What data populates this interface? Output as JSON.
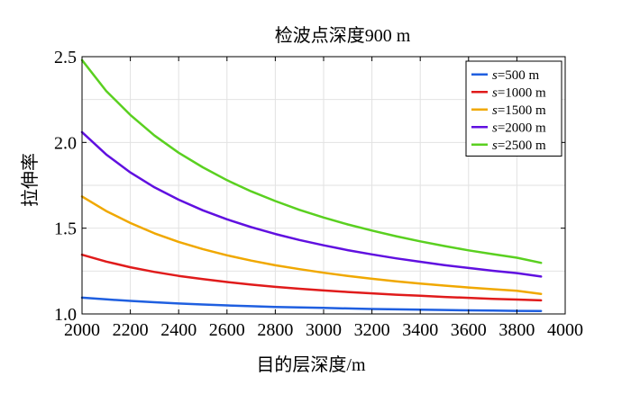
{
  "chart_data": {
    "type": "line",
    "title": "检波点深度900 m",
    "xlabel": "目的层深度/m",
    "ylabel": "拉伸率",
    "xlim": [
      2000,
      4000
    ],
    "ylim": [
      1.0,
      2.5
    ],
    "xticks": [
      2000,
      2200,
      2400,
      2600,
      2800,
      3000,
      3200,
      3400,
      3600,
      3800,
      4000
    ],
    "yticks": [
      1.0,
      1.5,
      2.0,
      2.5
    ],
    "xtick_labels": [
      "2000",
      "2200",
      "2400",
      "2600",
      "2800",
      "3000",
      "3200",
      "3400",
      "3600",
      "3800",
      "4000"
    ],
    "ytick_labels": [
      "1.0",
      "1.5",
      "2.0",
      "2.5"
    ],
    "grid": true,
    "legend_position": "top-right",
    "x": [
      2000,
      2100,
      2200,
      2300,
      2400,
      2500,
      2600,
      2700,
      2800,
      2900,
      3000,
      3100,
      3200,
      3300,
      3400,
      3500,
      3600,
      3700,
      3800,
      3900
    ],
    "series": [
      {
        "name": "s=500 m",
        "legend_var": "s",
        "legend_value": "=500 m",
        "color": "#1f5fe0",
        "values": [
          1.095,
          1.085,
          1.076,
          1.068,
          1.061,
          1.055,
          1.05,
          1.045,
          1.041,
          1.038,
          1.035,
          1.032,
          1.029,
          1.027,
          1.025,
          1.023,
          1.021,
          1.02,
          1.018,
          1.017
        ]
      },
      {
        "name": "s=1000 m",
        "legend_var": "s",
        "legend_value": "=1000 m",
        "color": "#e01b1b",
        "values": [
          1.345,
          1.305,
          1.272,
          1.245,
          1.222,
          1.203,
          1.186,
          1.171,
          1.158,
          1.147,
          1.137,
          1.128,
          1.12,
          1.112,
          1.106,
          1.099,
          1.094,
          1.088,
          1.084,
          1.079
        ]
      },
      {
        "name": "s=1500 m",
        "legend_var": "s",
        "legend_value": "=1500 m",
        "color": "#f0a800",
        "values": [
          1.685,
          1.6,
          1.53,
          1.47,
          1.42,
          1.378,
          1.342,
          1.311,
          1.284,
          1.261,
          1.24,
          1.222,
          1.205,
          1.19,
          1.177,
          1.165,
          1.154,
          1.144,
          1.135,
          1.117
        ]
      },
      {
        "name": "s=2000 m",
        "legend_var": "s",
        "legend_value": "=2000 m",
        "color": "#6010e0",
        "values": [
          2.06,
          1.93,
          1.825,
          1.738,
          1.666,
          1.604,
          1.552,
          1.506,
          1.466,
          1.431,
          1.4,
          1.372,
          1.347,
          1.324,
          1.304,
          1.285,
          1.268,
          1.252,
          1.238,
          1.218
        ]
      },
      {
        "name": "s=2500 m",
        "legend_var": "s",
        "legend_value": "=2500 m",
        "color": "#5ad020",
        "values": [
          2.48,
          2.3,
          2.16,
          2.04,
          1.94,
          1.855,
          1.78,
          1.715,
          1.658,
          1.607,
          1.562,
          1.522,
          1.486,
          1.453,
          1.423,
          1.396,
          1.371,
          1.349,
          1.328,
          1.298
        ]
      }
    ]
  }
}
